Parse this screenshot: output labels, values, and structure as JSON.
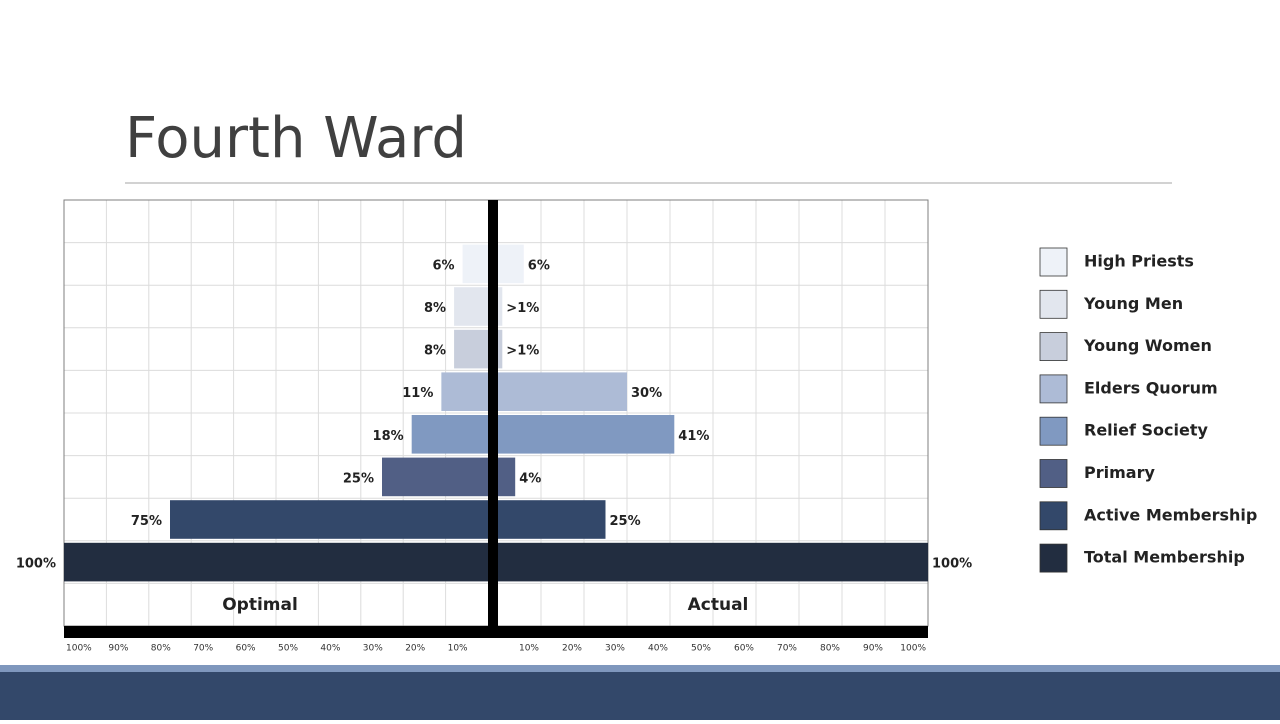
{
  "chart_data": {
    "type": "butterfly",
    "title": "Fourth Ward",
    "categories": [
      "High Priests",
      "Young Men",
      "Young Women",
      "Elders Quorum",
      "Relief Society",
      "Primary",
      "Active Membership",
      "Total Membership"
    ],
    "colors": [
      "#eef2f8",
      "#e2e6ee",
      "#c8cedc",
      "#adbbd6",
      "#8099c1",
      "#515f85",
      "#33486a",
      "#222d40"
    ],
    "xlim": [
      0,
      100
    ],
    "grid": true,
    "series": [
      {
        "name": "Optimal",
        "values": [
          6,
          8,
          8,
          11,
          18,
          25,
          75,
          100
        ],
        "value_labels": [
          "6%",
          "8%",
          "8%",
          "11%",
          "18%",
          "25%",
          "75%",
          "100%"
        ],
        "xticks": [
          {
            "value": 100,
            "label": "100%"
          },
          {
            "value": 90,
            "label": "90%"
          },
          {
            "value": 80,
            "label": "80%"
          },
          {
            "value": 70,
            "label": "70%"
          },
          {
            "value": 60,
            "label": "60%"
          },
          {
            "value": 50,
            "label": "50%"
          },
          {
            "value": 40,
            "label": "40%"
          },
          {
            "value": 30,
            "label": "30%"
          },
          {
            "value": 20,
            "label": "20%"
          },
          {
            "value": 10,
            "label": "10%"
          }
        ]
      },
      {
        "name": "Actual",
        "values": [
          6,
          1,
          1,
          30,
          41,
          4,
          25,
          100
        ],
        "value_labels": [
          "6%",
          ">1%",
          ">1%",
          "30%",
          "41%",
          "4%",
          "25%",
          "100%"
        ],
        "xticks": [
          {
            "value": 10,
            "label": "10%"
          },
          {
            "value": 20,
            "label": "20%"
          },
          {
            "value": 30,
            "label": "30%"
          },
          {
            "value": 40,
            "label": "40%"
          },
          {
            "value": 50,
            "label": "50%"
          },
          {
            "value": 60,
            "label": "60%"
          },
          {
            "value": 70,
            "label": "70%"
          },
          {
            "value": 80,
            "label": "80%"
          },
          {
            "value": 90,
            "label": "90%"
          },
          {
            "value": 100,
            "label": "100%"
          }
        ]
      }
    ]
  }
}
